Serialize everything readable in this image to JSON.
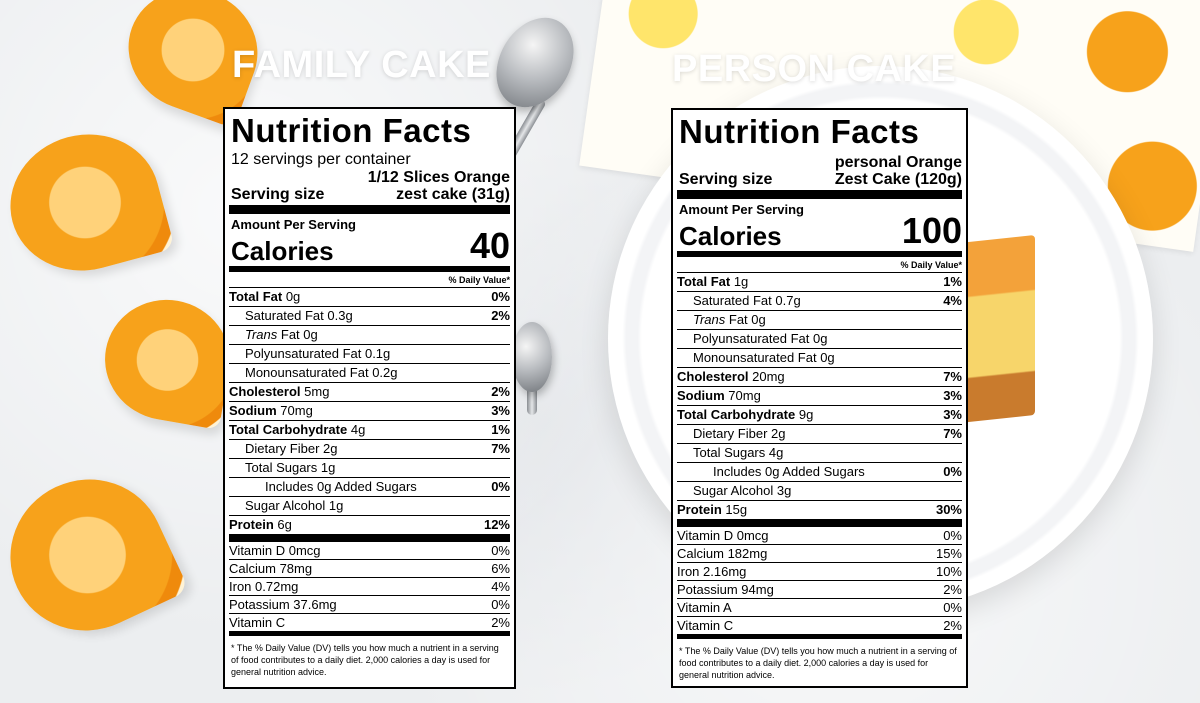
{
  "headings": {
    "left": "FAMILY CAKE",
    "right": "PERSON CAKE"
  },
  "labels": [
    {
      "title": "Nutrition Facts",
      "servings": "12 servings per container",
      "serving_size_label": "Serving size",
      "serving_size_value_line1": "1/12 Slices Orange",
      "serving_size_value_line2": "zest cake (31g)",
      "amount_per_serving": "Amount Per Serving",
      "calories_label": "Calories",
      "calories": "40",
      "dv_header": "% Daily Value*",
      "nutrients": [
        {
          "name": "Total Fat",
          "amount": "0g",
          "dv": "0%"
        },
        {
          "name": "Saturated Fat",
          "amount": "0.3g",
          "dv": "2%"
        },
        {
          "name": "Trans",
          "amount": "Fat 0g",
          "dv": ""
        },
        {
          "name": "Polyunsaturated Fat 0.1g",
          "amount": "",
          "dv": ""
        },
        {
          "name": "Monounsaturated Fat 0.2g",
          "amount": "",
          "dv": ""
        },
        {
          "name": "Cholesterol",
          "amount": "5mg",
          "dv": "2%"
        },
        {
          "name": "Sodium",
          "amount": "70mg",
          "dv": "3%"
        },
        {
          "name": "Total Carbohydrate",
          "amount": "4g",
          "dv": "1%"
        },
        {
          "name": "Dietary Fiber 2g",
          "amount": "",
          "dv": "7%"
        },
        {
          "name": "Total Sugars 1g",
          "amount": "",
          "dv": ""
        },
        {
          "name": "Includes 0g Added Sugars",
          "amount": "",
          "dv": "0%"
        },
        {
          "name": "Sugar Alcohol 1g",
          "amount": "",
          "dv": ""
        },
        {
          "name": "Protein",
          "amount": "6g",
          "dv": "12%"
        }
      ],
      "vitamins": [
        {
          "name": "Vitamin D 0mcg",
          "dv": "0%"
        },
        {
          "name": "Calcium 78mg",
          "dv": "6%"
        },
        {
          "name": "Iron 0.72mg",
          "dv": "4%"
        },
        {
          "name": "Potassium 37.6mg",
          "dv": "0%"
        },
        {
          "name": "Vitamin C",
          "dv": "2%"
        }
      ],
      "footnote": "* The % Daily Value (DV) tells you how much a nutrient in a serving of food contributes to a daily diet. 2,000 calories a day is used for general nutrition advice."
    },
    {
      "title": "Nutrition Facts",
      "servings": "",
      "serving_size_label": "Serving size",
      "serving_size_value_line1": "personal Orange",
      "serving_size_value_line2": "Zest Cake (120g)",
      "amount_per_serving": "Amount Per Serving",
      "calories_label": "Calories",
      "calories": "100",
      "dv_header": "% Daily Value*",
      "nutrients": [
        {
          "name": "Total Fat",
          "amount": "1g",
          "dv": "1%"
        },
        {
          "name": "Saturated Fat",
          "amount": "0.7g",
          "dv": "4%"
        },
        {
          "name": "Trans",
          "amount": "Fat 0g",
          "dv": ""
        },
        {
          "name": "Polyunsaturated Fat 0g",
          "amount": "",
          "dv": ""
        },
        {
          "name": "Monounsaturated Fat 0g",
          "amount": "",
          "dv": ""
        },
        {
          "name": "Cholesterol",
          "amount": "20mg",
          "dv": "7%"
        },
        {
          "name": "Sodium",
          "amount": "70mg",
          "dv": "3%"
        },
        {
          "name": "Total Carbohydrate",
          "amount": "9g",
          "dv": "3%"
        },
        {
          "name": "Dietary Fiber 2g",
          "amount": "",
          "dv": "7%"
        },
        {
          "name": "Total Sugars 4g",
          "amount": "",
          "dv": ""
        },
        {
          "name": "Includes 0g Added Sugars",
          "amount": "",
          "dv": "0%"
        },
        {
          "name": "Sugar Alcohol 3g",
          "amount": "",
          "dv": ""
        },
        {
          "name": "Protein",
          "amount": "15g",
          "dv": "30%"
        }
      ],
      "vitamins": [
        {
          "name": "Vitamin D 0mcg",
          "dv": "0%"
        },
        {
          "name": "Calcium 182mg",
          "dv": "15%"
        },
        {
          "name": "Iron 2.16mg",
          "dv": "10%"
        },
        {
          "name": "Potassium 94mg",
          "dv": "2%"
        },
        {
          "name": "Vitamin A",
          "dv": "0%"
        },
        {
          "name": "Vitamin C",
          "dv": "2%"
        }
      ],
      "footnote": "* The % Daily Value (DV) tells you how much a nutrient in a serving of food contributes to a daily diet. 2,000 calories a day is used for general nutrition advice."
    }
  ]
}
